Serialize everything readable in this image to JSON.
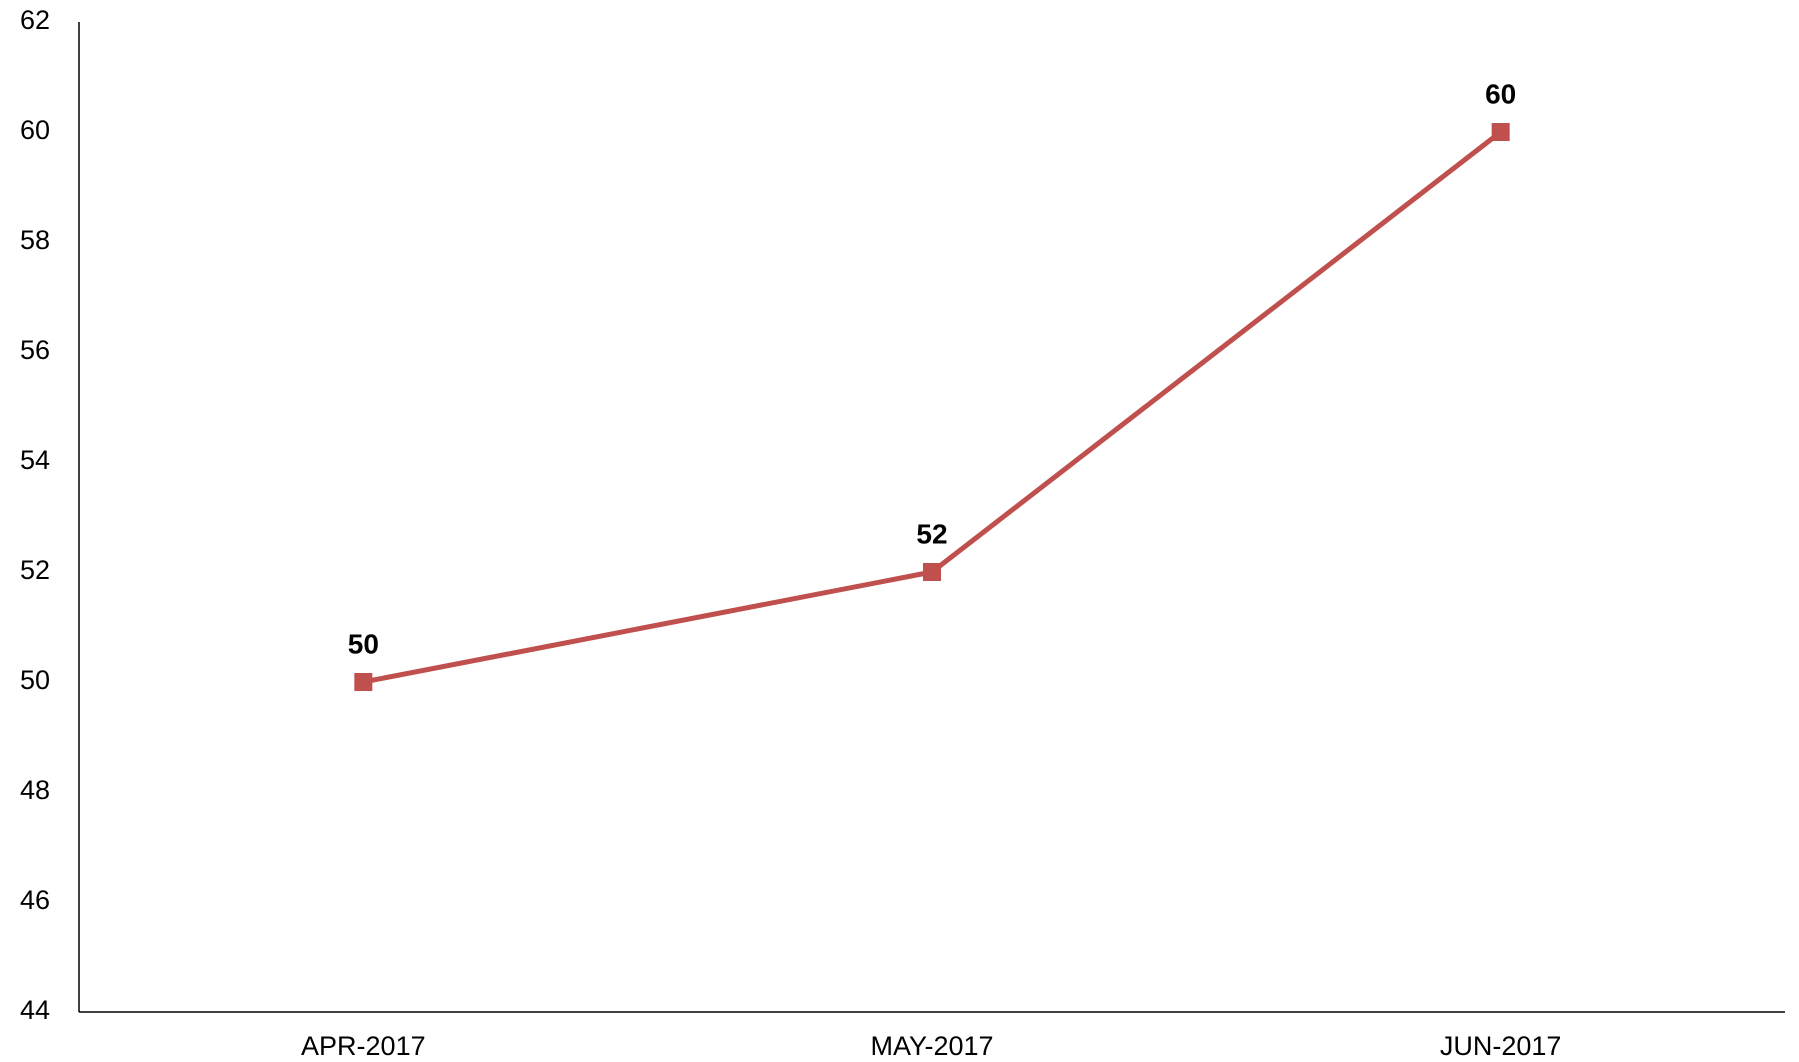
{
  "chart_data": {
    "type": "line",
    "title": "",
    "xlabel": "",
    "ylabel": "",
    "categories": [
      "APR-2017",
      "MAY-2017",
      "JUN-2017"
    ],
    "series": [
      {
        "values": [
          50,
          52,
          60
        ],
        "color": "#c0504d",
        "marker": "square"
      }
    ],
    "ylim": [
      44,
      62
    ],
    "yticks": [
      44,
      46,
      48,
      50,
      52,
      54,
      56,
      58,
      60,
      62
    ],
    "data_labels": true,
    "grid": false,
    "legend": "none"
  }
}
